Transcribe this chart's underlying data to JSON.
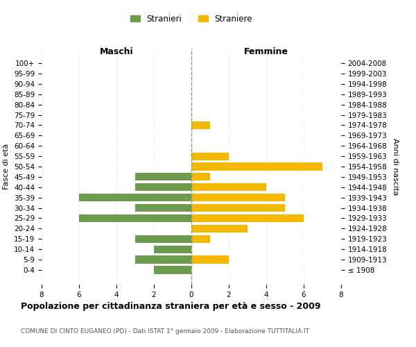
{
  "age_groups": [
    "100+",
    "95-99",
    "90-94",
    "85-89",
    "80-84",
    "75-79",
    "70-74",
    "65-69",
    "60-64",
    "55-59",
    "50-54",
    "45-49",
    "40-44",
    "35-39",
    "30-34",
    "25-29",
    "20-24",
    "15-19",
    "10-14",
    "5-9",
    "0-4"
  ],
  "birth_years": [
    "≤ 1908",
    "1909-1913",
    "1914-1918",
    "1919-1923",
    "1924-1928",
    "1929-1933",
    "1934-1938",
    "1939-1943",
    "1944-1948",
    "1949-1953",
    "1954-1958",
    "1959-1963",
    "1964-1968",
    "1969-1973",
    "1974-1978",
    "1979-1983",
    "1984-1988",
    "1989-1993",
    "1994-1998",
    "1999-2003",
    "2004-2008"
  ],
  "maschi": [
    0,
    0,
    0,
    0,
    0,
    0,
    0,
    0,
    0,
    0,
    0,
    3,
    3,
    6,
    3,
    6,
    0,
    3,
    2,
    3,
    2
  ],
  "femmine": [
    0,
    0,
    0,
    0,
    0,
    0,
    1,
    0,
    0,
    2,
    7,
    1,
    4,
    5,
    5,
    6,
    3,
    1,
    0,
    2,
    0
  ],
  "color_maschi": "#6d9b4e",
  "color_femmine": "#f5b800",
  "title": "Popolazione per cittadinanza straniera per età e sesso - 2009",
  "subtitle": "COMUNE DI CINTO EUGANEO (PD) - Dati ISTAT 1° gennaio 2009 - Elaborazione TUTTITALIA.IT",
  "legend_maschi": "Stranieri",
  "legend_femmine": "Straniere",
  "xlabel_left": "Maschi",
  "xlabel_right": "Femmine",
  "ylabel_left": "Fasce di età",
  "ylabel_right": "Anni di nascita",
  "xlim": 8,
  "background_color": "#ffffff",
  "grid_color": "#cccccc"
}
